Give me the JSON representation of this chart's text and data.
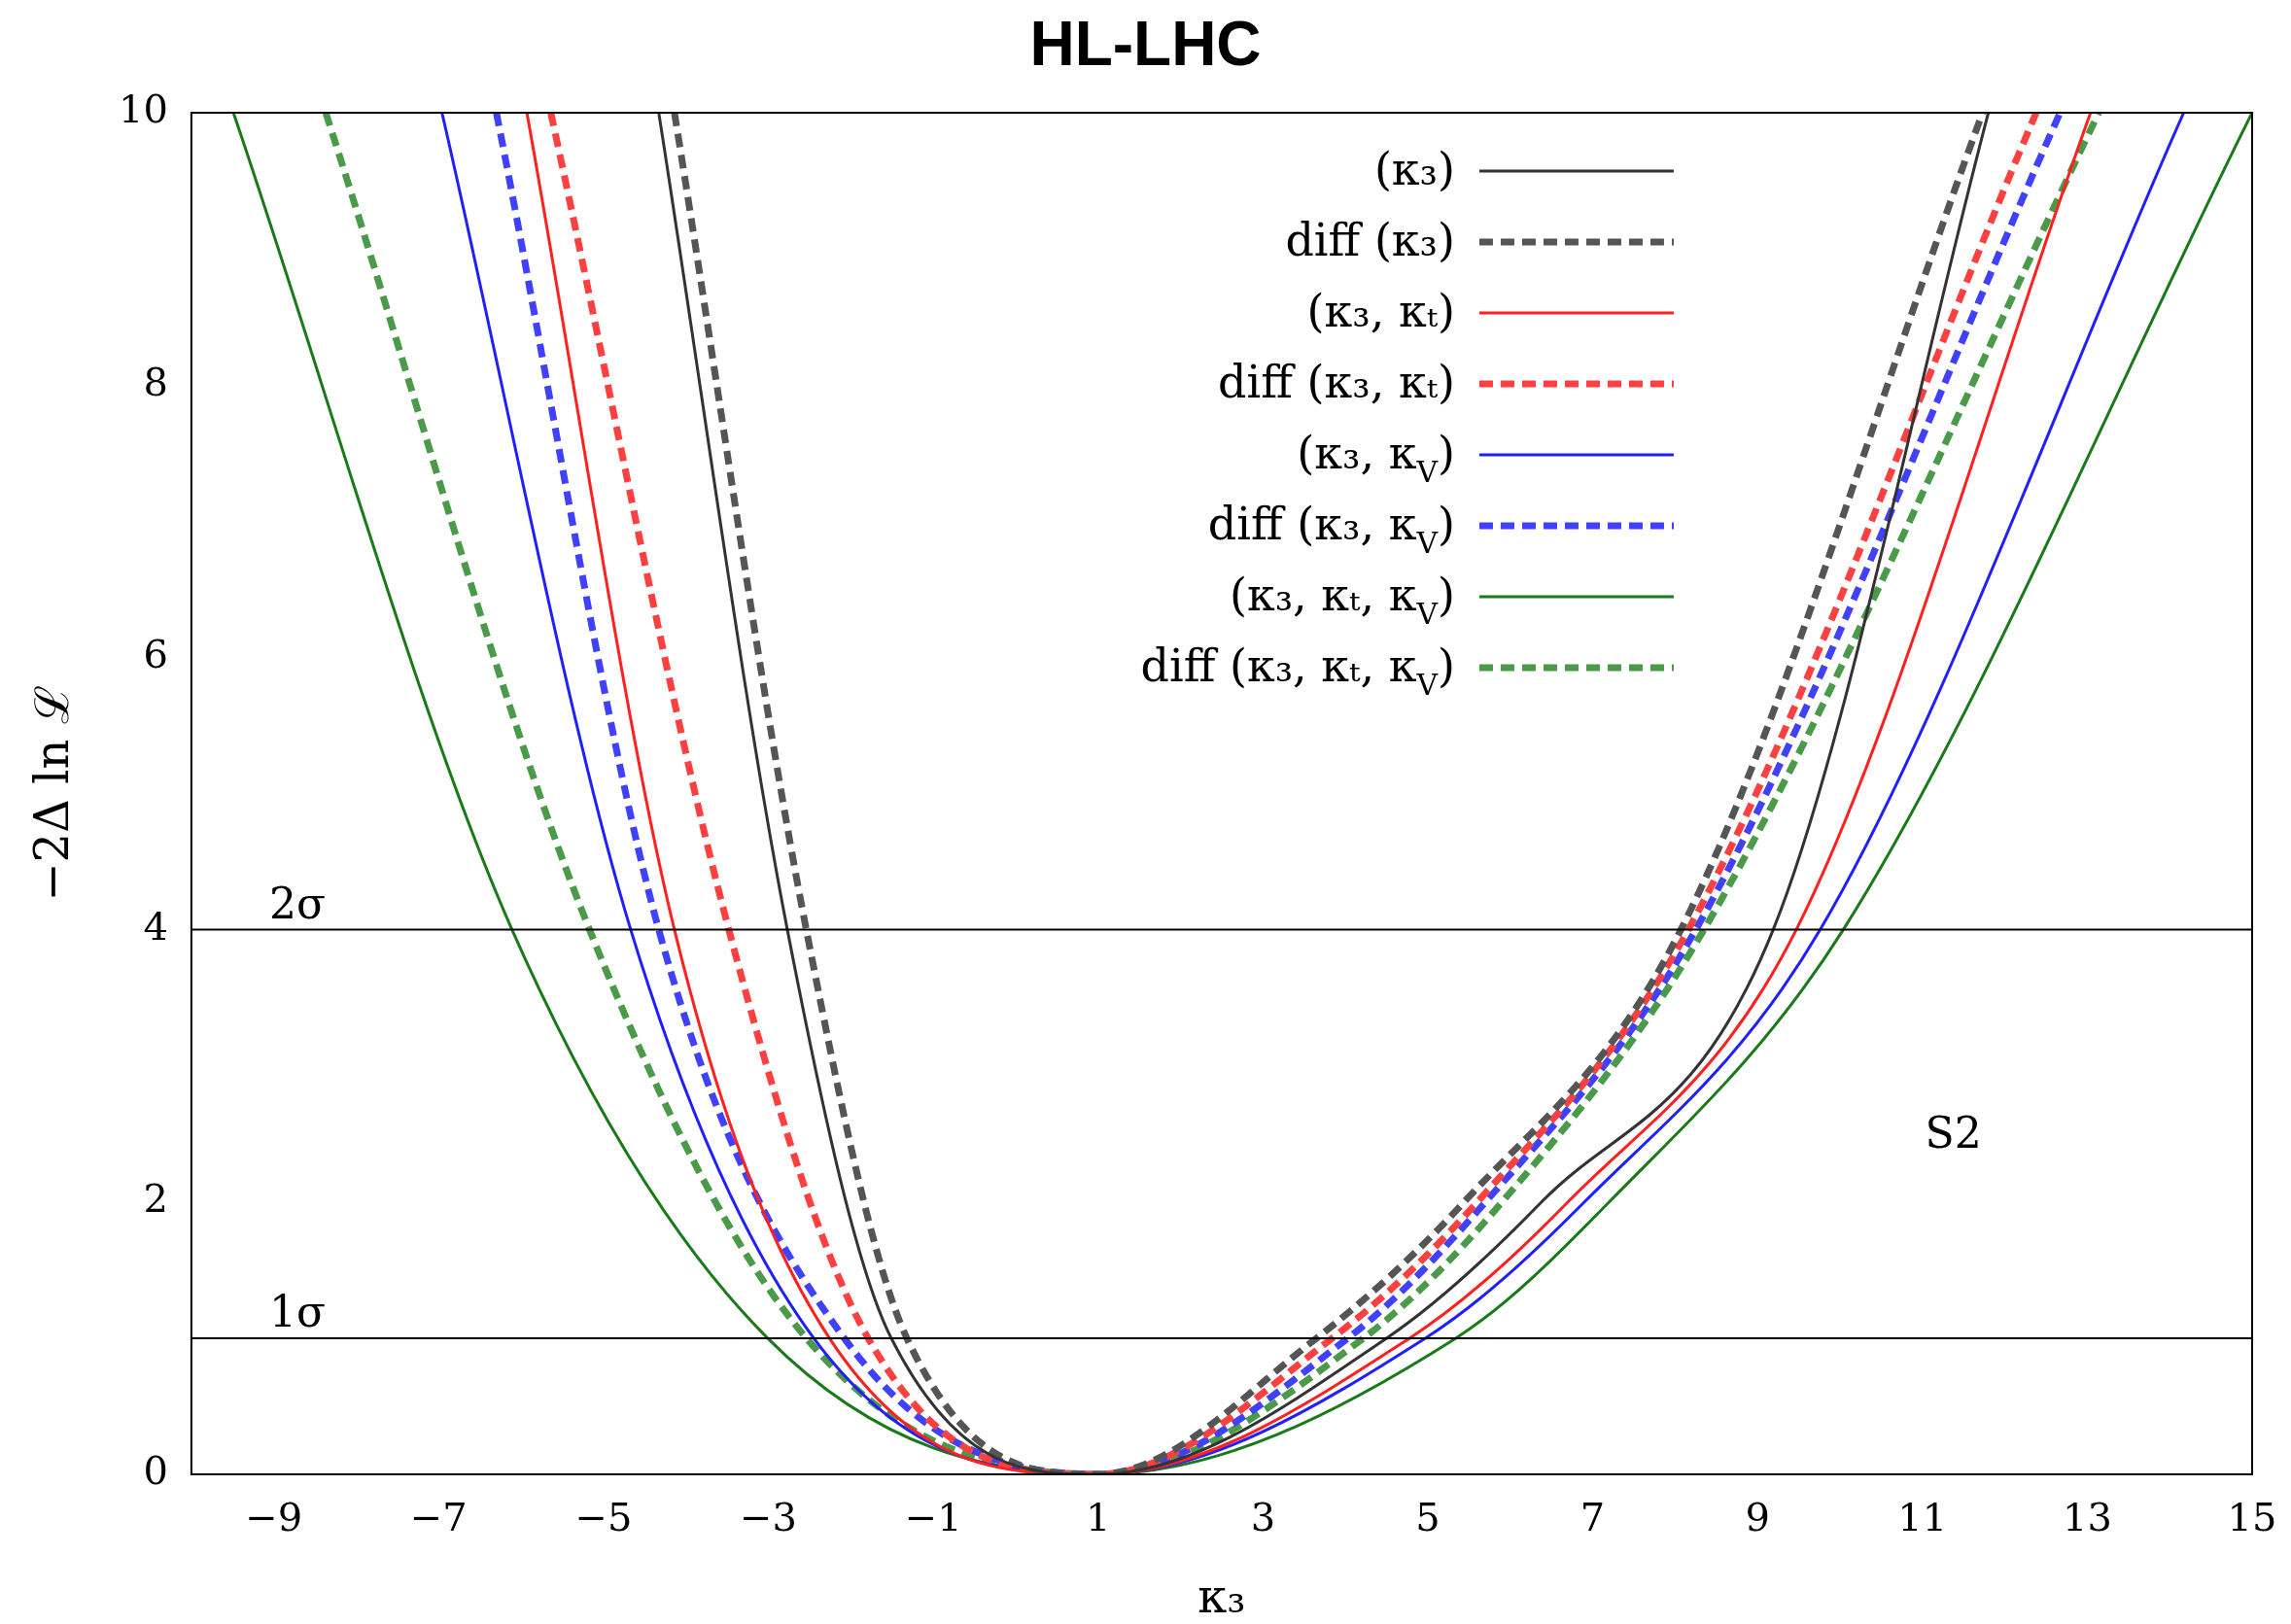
{
  "chart_data": {
    "type": "line",
    "title": "HL-LHC",
    "xlabel": "κ₃",
    "ylabel": "−2Δ ln ℒ",
    "xlim": [
      -10,
      15
    ],
    "ylim": [
      0,
      10
    ],
    "xticks": [
      -9,
      -7,
      -5,
      -3,
      -1,
      1,
      3,
      5,
      7,
      9,
      11,
      13,
      15
    ],
    "yticks": [
      0,
      2,
      4,
      6,
      8,
      10
    ],
    "grid": false,
    "legend": "top",
    "marker": "none",
    "series": [
      {
        "name": "(κ₃)",
        "color": "#333333",
        "line_style": "solid",
        "x": [
          -4.33,
          -2.77,
          -1.51,
          1,
          4.5,
          6.38,
          9.19,
          11.8
        ],
        "values": [
          10,
          4,
          1,
          0,
          1,
          2,
          4,
          10
        ]
      },
      {
        "name": "diff (κ₃)",
        "color": "#555555",
        "line_style": "dashed",
        "x": [
          -4.14,
          -2.54,
          -1.32,
          1,
          3.65,
          5.44,
          8.07,
          11.73
        ],
        "values": [
          10,
          4,
          1,
          0,
          1,
          2,
          4,
          10
        ]
      },
      {
        "name": "(κ₃, κₜ)",
        "color": "#ff2020",
        "line_style": "solid",
        "x": [
          -5.93,
          -4.14,
          -2.26,
          1,
          4.78,
          6.7,
          9.47,
          13.04
        ],
        "values": [
          10,
          4,
          1,
          0,
          1,
          2,
          4,
          10
        ]
      },
      {
        "name": "diff (κ₃, κₜ)",
        "color": "#ff4040",
        "line_style": "dashed",
        "x": [
          -5.64,
          -3.48,
          -1.79,
          1,
          3.84,
          5.6,
          8.16,
          12.38
        ],
        "values": [
          10,
          4,
          1,
          0,
          1,
          2,
          4,
          10
        ]
      },
      {
        "name": "(κ₃, κ$_{V}$)",
        "color": "#2020ff",
        "line_style": "solid",
        "x": [
          -6.96,
          -4.67,
          -2.45,
          1,
          4.97,
          6.9,
          9.76,
          14.17
        ],
        "values": [
          10,
          4,
          1,
          0,
          1,
          2,
          4,
          10
        ]
      },
      {
        "name": "diff (κ₃, κ$_{V}$)",
        "color": "#4040ff",
        "line_style": "dashed",
        "x": [
          -6.3,
          -4.33,
          -2.08,
          1,
          4.03,
          5.7,
          8.25,
          12.67
        ],
        "values": [
          10,
          4,
          1,
          0,
          1,
          2,
          4,
          10
        ]
      },
      {
        "name": "(κ₃, κₜ, κ$_{V}$)",
        "color": "#1a7a1a",
        "line_style": "solid",
        "x": [
          -9.49,
          -6.11,
          -3.01,
          1,
          5.34,
          7.2,
          10.04,
          15
        ],
        "values": [
          10,
          4,
          1,
          0,
          1,
          2,
          4,
          10
        ]
      },
      {
        "name": "diff (κ₃, κₜ, κ$_{V}$)",
        "color": "#4a9a4a",
        "line_style": "dashed",
        "x": [
          -8.37,
          -5.17,
          -2.54,
          1,
          4.22,
          5.9,
          8.35,
          13.14
        ],
        "values": [
          10,
          4,
          1,
          0,
          1,
          2,
          4,
          10
        ]
      }
    ],
    "ref_lines": [
      {
        "axis": "y",
        "value": 1,
        "label": "1σ",
        "color": "#000000"
      },
      {
        "axis": "y",
        "value": 4,
        "label": "2σ",
        "color": "#000000"
      }
    ],
    "annotations": [
      "S2"
    ]
  }
}
